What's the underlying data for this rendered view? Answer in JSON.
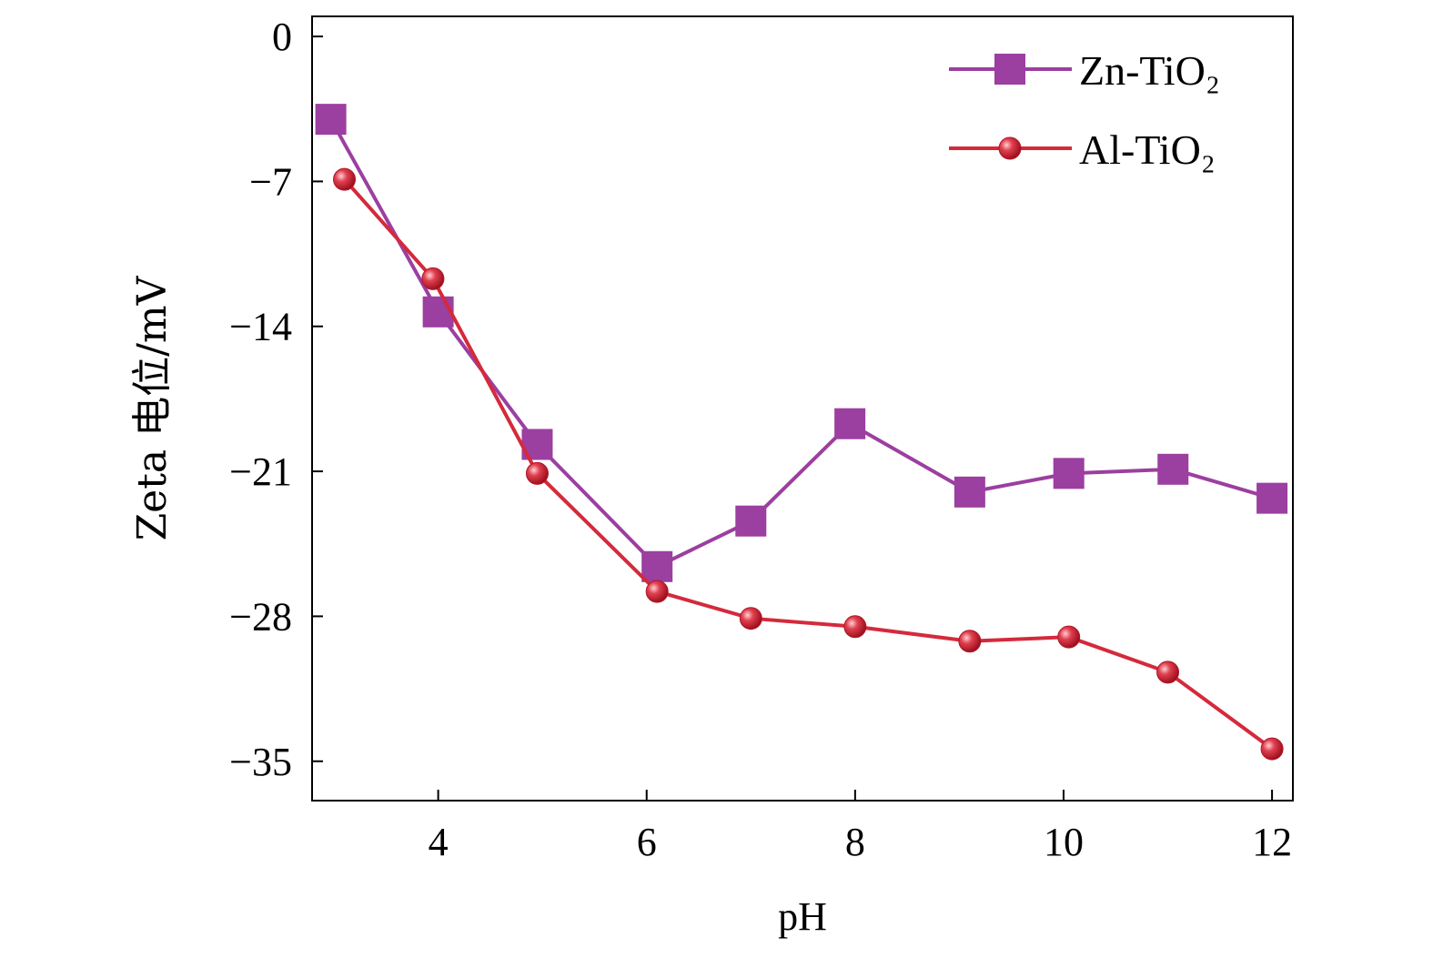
{
  "chart_data": {
    "type": "line",
    "title": "",
    "xlabel": "pH",
    "ylabel": "Zeta 电位/mV",
    "xlim": [
      2.79,
      12.2
    ],
    "ylim": [
      -36.9,
      0.97
    ],
    "xticks": [
      4,
      6,
      8,
      10,
      12
    ],
    "xtick_labels": [
      "4",
      "6",
      "8",
      "10",
      "12"
    ],
    "yticks": [
      0,
      -7,
      -14,
      -21,
      -28,
      -35
    ],
    "ytick_labels": [
      "0",
      "−7",
      "−14",
      "−21",
      "−28",
      "−35"
    ],
    "grid": false,
    "legend_position": "top-right",
    "series": [
      {
        "name": "Zn-TiO₂",
        "color": "#9b3fa0",
        "marker": "square",
        "x": [
          2.97,
          4.0,
          4.95,
          6.1,
          7.0,
          7.95,
          9.1,
          10.05,
          11.05,
          12.0
        ],
        "y": [
          -4.0,
          -13.3,
          -19.7,
          -25.6,
          -23.4,
          -18.7,
          -22.0,
          -21.1,
          -20.9,
          -22.3
        ]
      },
      {
        "name": "Al-TiO₂",
        "color": "#d42a3c",
        "marker": "sphere",
        "x": [
          3.1,
          3.95,
          4.95,
          6.1,
          7.0,
          8.0,
          9.1,
          10.05,
          11.0,
          12.0
        ],
        "y": [
          -6.9,
          -11.7,
          -21.1,
          -26.8,
          -28.1,
          -28.5,
          -29.2,
          -29.0,
          -30.7,
          -34.4
        ]
      }
    ]
  }
}
